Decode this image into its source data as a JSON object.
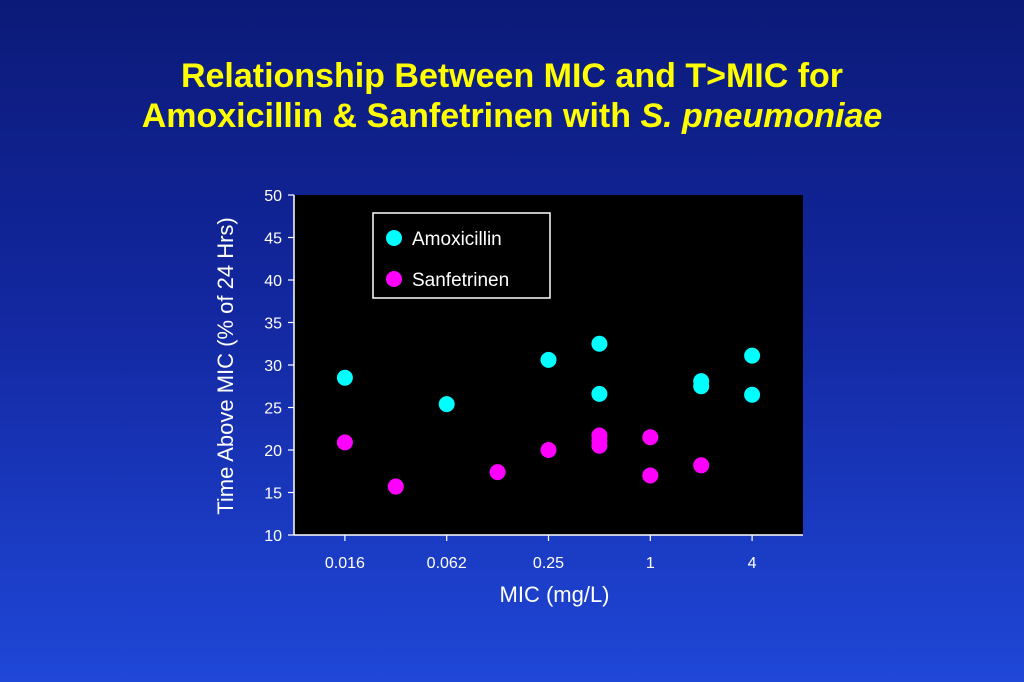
{
  "slide": {
    "title_line1": "Relationship Between MIC and T>MIC for",
    "title_line2_prefix": "Amoxicillin & Sanfetrinen with ",
    "title_line2_italic": "S. pneumoniae"
  },
  "chart_data": {
    "type": "scatter",
    "title": "",
    "xlabel": "MIC (mg/L)",
    "ylabel": "Time Above MIC (% of 24 Hrs)",
    "x_scale": "log2",
    "x_ticks": [
      "0.016",
      "0.062",
      "0.25",
      "1",
      "4"
    ],
    "x_tick_values": [
      0.015625,
      0.0625,
      0.25,
      1,
      4
    ],
    "xlim": [
      0.0078125,
      8
    ],
    "ylim": [
      10,
      50
    ],
    "y_ticks": [
      "10",
      "15",
      "20",
      "25",
      "30",
      "35",
      "40",
      "45",
      "50"
    ],
    "legend_position": "top-left",
    "series": [
      {
        "name": "Amoxicillin",
        "color": "#00ffff",
        "points": [
          {
            "x": 0.015625,
            "y": 28.5
          },
          {
            "x": 0.0625,
            "y": 25.4
          },
          {
            "x": 0.25,
            "y": 30.6
          },
          {
            "x": 0.5,
            "y": 32.5
          },
          {
            "x": 0.5,
            "y": 26.6
          },
          {
            "x": 2,
            "y": 28.1
          },
          {
            "x": 2,
            "y": 27.5
          },
          {
            "x": 4,
            "y": 31.1
          },
          {
            "x": 4,
            "y": 26.5
          }
        ]
      },
      {
        "name": "Sanfetrinen",
        "color": "#ff00ff",
        "points": [
          {
            "x": 0.015625,
            "y": 20.9
          },
          {
            "x": 0.03125,
            "y": 15.7
          },
          {
            "x": 0.125,
            "y": 17.4
          },
          {
            "x": 0.25,
            "y": 20.0
          },
          {
            "x": 0.5,
            "y": 21.7
          },
          {
            "x": 0.5,
            "y": 21.1
          },
          {
            "x": 0.5,
            "y": 20.5
          },
          {
            "x": 1,
            "y": 21.5
          },
          {
            "x": 1,
            "y": 17.0
          },
          {
            "x": 2,
            "y": 18.2
          }
        ]
      }
    ]
  }
}
